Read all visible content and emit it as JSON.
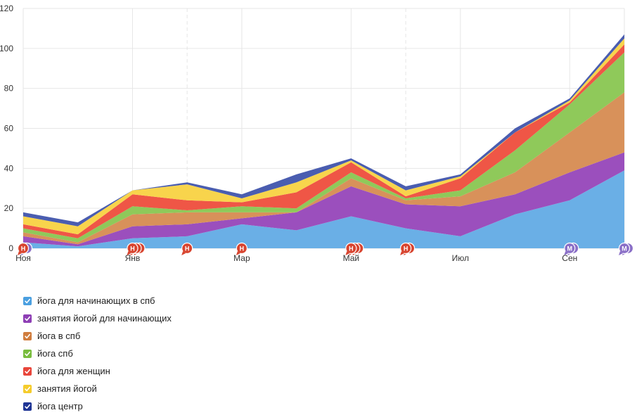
{
  "chart_data": {
    "type": "area",
    "stacked": true,
    "x": [
      "Ноя",
      "",
      "Янв",
      "",
      "Мар",
      "",
      "Май",
      "",
      "Июл",
      "",
      "Сен",
      ""
    ],
    "x_tick_labels": [
      {
        "index": 0,
        "label": "Ноя"
      },
      {
        "index": 2,
        "label": "Янв"
      },
      {
        "index": 4,
        "label": "Мар"
      },
      {
        "index": 6,
        "label": "Май"
      },
      {
        "index": 8,
        "label": "Июл"
      },
      {
        "index": 10,
        "label": "Сен"
      }
    ],
    "ylim": [
      0,
      120
    ],
    "y_ticks": [
      0,
      20,
      40,
      60,
      80,
      100,
      120
    ],
    "grid": true,
    "series": [
      {
        "name": "йога для начинающих в спб",
        "color": "#6aafe6",
        "values": [
          3,
          1,
          5,
          6,
          12,
          9,
          16,
          10,
          6,
          17,
          24,
          39
        ]
      },
      {
        "name": "занятия йогой для начинающих",
        "color": "#9b4fbd",
        "values": [
          3,
          1,
          6,
          6,
          3,
          9,
          15,
          12,
          15,
          10,
          14,
          9
        ]
      },
      {
        "name": "йога в спб",
        "color": "#d8915a",
        "values": [
          2,
          1,
          6,
          6,
          3,
          0,
          4,
          2,
          5,
          11,
          20,
          30
        ]
      },
      {
        "name": "йога спб",
        "color": "#8fc95a",
        "values": [
          2,
          2,
          4,
          1,
          3,
          2,
          3,
          1,
          3,
          11,
          14,
          20
        ]
      },
      {
        "name": "йога для женщин",
        "color": "#ef5646",
        "values": [
          2,
          2,
          6,
          5,
          2,
          8,
          5,
          1,
          6,
          9,
          1,
          4
        ]
      },
      {
        "name": "занятия йогой",
        "color": "#f8d44c",
        "values": [
          4,
          4,
          2,
          8,
          2,
          5,
          1,
          3,
          1,
          0,
          1,
          3
        ]
      },
      {
        "name": "йога центр",
        "color": "#4a5db0",
        "values": [
          2,
          2,
          0,
          1,
          2,
          4,
          1,
          2,
          1,
          2,
          1,
          2
        ]
      }
    ],
    "annotations": [
      {
        "x_index": 0,
        "label": "Н",
        "color": "#d8442f"
      },
      {
        "x_index": 0.05,
        "label": "",
        "color": "#8a6fc7"
      },
      {
        "x_index": 2,
        "label": "Н",
        "color": "#d8442f"
      },
      {
        "x_index": 2.05,
        "label": "",
        "color": "#d8442f"
      },
      {
        "x_index": 2.1,
        "label": "",
        "color": "#d8442f"
      },
      {
        "x_index": 3,
        "label": "Н",
        "color": "#d8442f"
      },
      {
        "x_index": 4,
        "label": "Н",
        "color": "#d8442f"
      },
      {
        "x_index": 6,
        "label": "Н",
        "color": "#d8442f"
      },
      {
        "x_index": 6.05,
        "label": "",
        "color": "#d8442f"
      },
      {
        "x_index": 6.1,
        "label": "",
        "color": "#d8442f"
      },
      {
        "x_index": 7,
        "label": "Н",
        "color": "#d8442f"
      },
      {
        "x_index": 7.05,
        "label": "",
        "color": "#d8442f"
      },
      {
        "x_index": 10,
        "label": "М",
        "color": "#8a6fc7"
      },
      {
        "x_index": 10.05,
        "label": "",
        "color": "#8a6fc7"
      },
      {
        "x_index": 11,
        "label": "М",
        "color": "#8a6fc7"
      },
      {
        "x_index": 11.05,
        "label": "",
        "color": "#8a6fc7"
      }
    ],
    "dashed_gridlines_at": [
      3,
      7
    ]
  },
  "legend": {
    "items": [
      {
        "label": "йога для начинающих в спб",
        "color": "#4a9fe0"
      },
      {
        "label": "занятия йогой для начинающих",
        "color": "#8e3fb5"
      },
      {
        "label": "йога в спб",
        "color": "#d07d3e"
      },
      {
        "label": "йога спб",
        "color": "#79bd3e"
      },
      {
        "label": "йога для женщин",
        "color": "#e8453a"
      },
      {
        "label": "занятия йогой",
        "color": "#f5cc2c"
      },
      {
        "label": "йога центр",
        "color": "#1f3595"
      }
    ]
  }
}
